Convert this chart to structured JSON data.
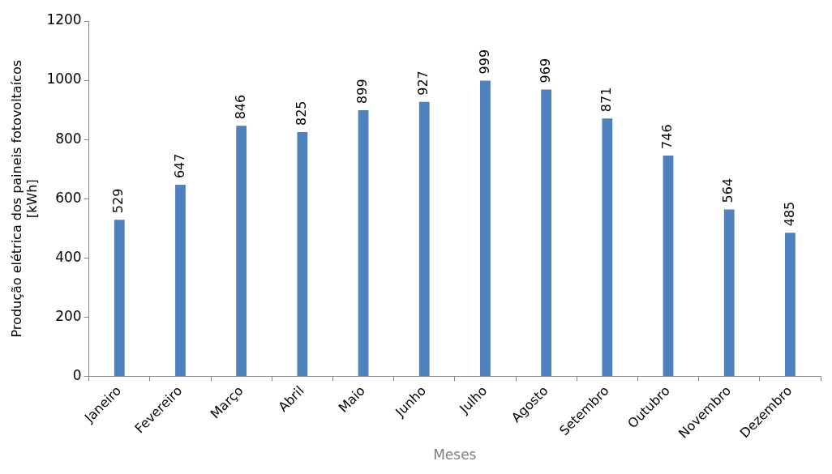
{
  "chart_data": {
    "type": "bar",
    "xlabel": "Meses",
    "ylabel": "Produção elétrica dos paineis fotovoltaícos\n[kWh]",
    "categories": [
      "Janeiro",
      "Fevereiro",
      "Março",
      "Abril",
      "Maio",
      "Junho",
      "Julho",
      "Agosto",
      "Setembro",
      "Outubro",
      "Novembro",
      "Dezembro"
    ],
    "values": [
      529,
      647,
      846,
      825,
      899,
      927,
      999,
      969,
      871,
      746,
      564,
      485
    ],
    "color": "#4f81bd",
    "ylim": [
      0,
      1200
    ],
    "yticks": [
      0,
      200,
      400,
      600,
      800,
      1000,
      1200
    ],
    "grid": false,
    "data_labels": true
  }
}
